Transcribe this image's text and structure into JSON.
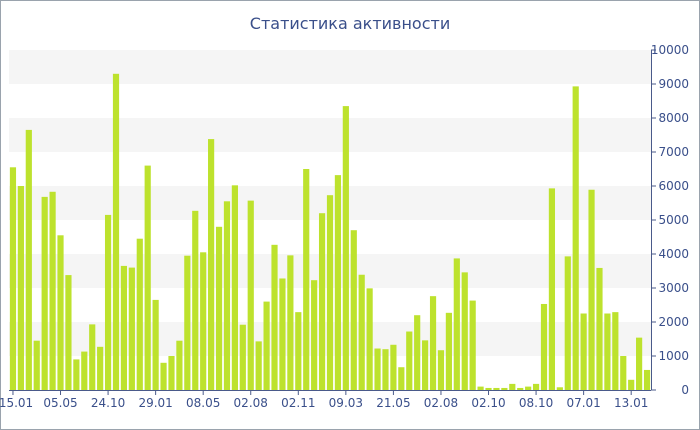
{
  "chart_data": {
    "type": "bar",
    "title": "Статистика активности",
    "xlabel": "",
    "ylabel": "",
    "ylim": [
      0,
      10000
    ],
    "y_ticks": [
      0,
      1000,
      2000,
      3000,
      4000,
      5000,
      6000,
      7000,
      8000,
      9000,
      10000
    ],
    "y_axis_side": "right",
    "grid": "alternating horizontal bands",
    "legend": "none",
    "bar_color": "#bde22d",
    "x_tick_labels": [
      {
        "index": 0,
        "label": "15.01"
      },
      {
        "index": 6,
        "label": "05.05"
      },
      {
        "index": 12,
        "label": "24.10"
      },
      {
        "index": 18,
        "label": "29.01"
      },
      {
        "index": 24,
        "label": "08.05"
      },
      {
        "index": 30,
        "label": "02.08"
      },
      {
        "index": 36,
        "label": "02.11"
      },
      {
        "index": 42,
        "label": "09.03"
      },
      {
        "index": 48,
        "label": "21.05"
      },
      {
        "index": 54,
        "label": "02.08"
      },
      {
        "index": 60,
        "label": "02.10"
      },
      {
        "index": 66,
        "label": "08.10"
      },
      {
        "index": 72,
        "label": "07.01"
      },
      {
        "index": 78,
        "label": "13.01"
      }
    ],
    "values": [
      6550,
      6000,
      7650,
      1450,
      5680,
      5830,
      4550,
      3380,
      900,
      1130,
      1930,
      1270,
      5150,
      9300,
      3650,
      3600,
      4450,
      6600,
      2650,
      800,
      1000,
      1450,
      3950,
      5270,
      4050,
      7380,
      4800,
      5550,
      6020,
      1920,
      5570,
      1430,
      2600,
      4270,
      3280,
      3960,
      2290,
      6500,
      3230,
      5200,
      5730,
      6320,
      8350,
      4700,
      3390,
      2990,
      1220,
      1200,
      1330,
      670,
      1720,
      2200,
      1460,
      2760,
      1170,
      2270,
      3870,
      3460,
      2630,
      100,
      60,
      60,
      60,
      180,
      60,
      100,
      180,
      2530,
      5930,
      80,
      3930,
      8930,
      2250,
      5890,
      3590,
      2250,
      2290,
      1000,
      300,
      1540,
      590
    ]
  }
}
